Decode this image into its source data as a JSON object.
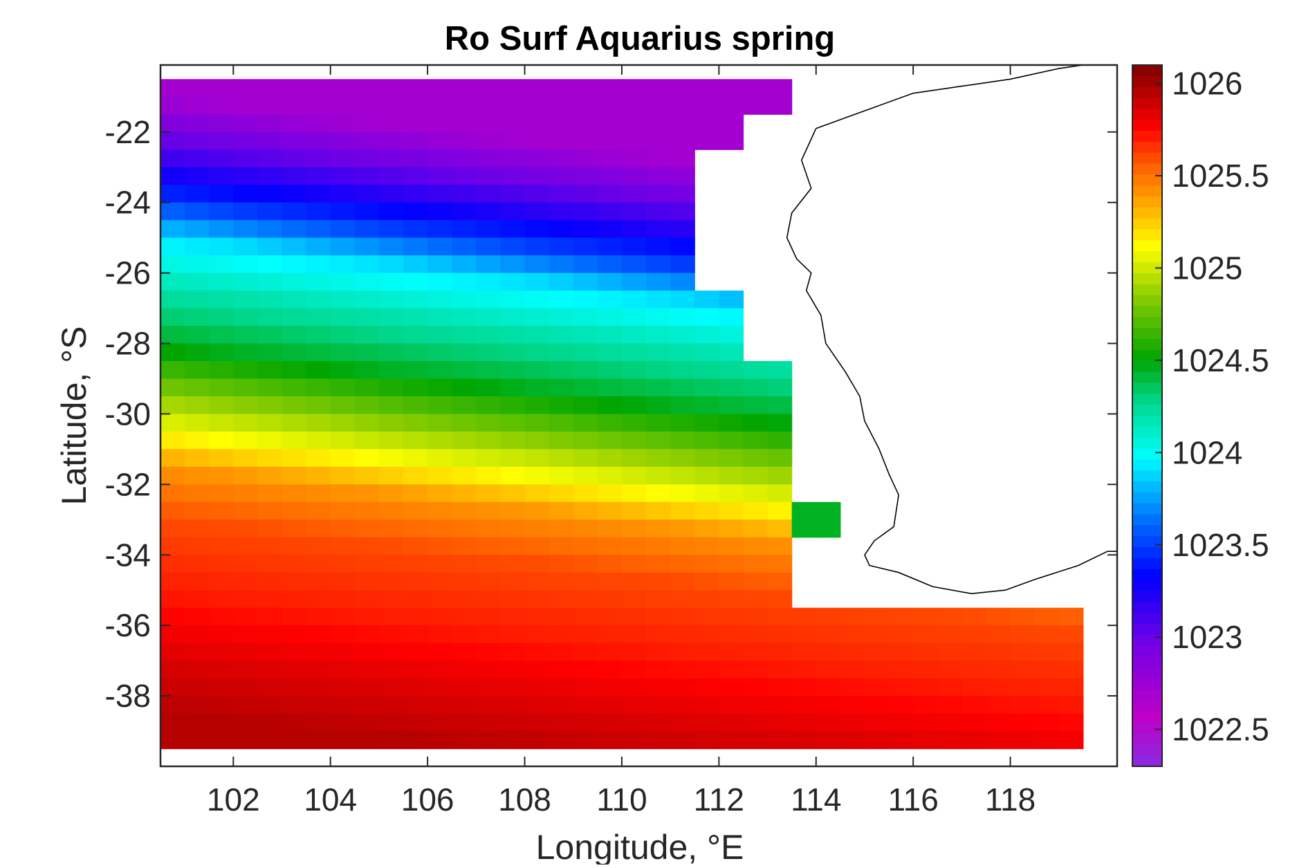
{
  "chart_data": {
    "type": "heatmap",
    "title": "Ro Surf Aquarius spring",
    "xlabel": "Longitude, °E",
    "ylabel": "Latitude, °S",
    "xlim": [
      100.5,
      120.2
    ],
    "ylim": [
      -40.0,
      -20.1
    ],
    "x_ticks": [
      102,
      104,
      106,
      108,
      110,
      112,
      114,
      116,
      118
    ],
    "x_tick_labels": [
      "102",
      "104",
      "106",
      "108",
      "110",
      "112",
      "114",
      "116",
      "118"
    ],
    "y_ticks": [
      -22,
      -24,
      -26,
      -28,
      -30,
      -32,
      -34,
      -36,
      -38
    ],
    "y_tick_labels": [
      "-22",
      "-24",
      "-26",
      "-28",
      "-30",
      "-32",
      "-34",
      "-36",
      "-38"
    ],
    "colorbar": {
      "limits": [
        1022.3,
        1026.1
      ],
      "ticks": [
        1022.5,
        1023,
        1023.5,
        1024,
        1024.5,
        1025,
        1025.5,
        1026
      ],
      "tick_labels": [
        "1022.5",
        "1023",
        "1023.5",
        "1024",
        "1024.5",
        "1025",
        "1025.5",
        "1026"
      ],
      "colormap": "hsv-like: violet - blue - cyan - green - yellow - orange - red - dark red"
    },
    "grid": {
      "lon_range": [
        100.5,
        119.5
      ],
      "lat_range": [
        -39.5,
        -20.5
      ],
      "resolution_deg": 0.5,
      "value_bands": [
        {
          "lat": -21.0,
          "value": 1022.7
        },
        {
          "lat": -23.0,
          "value": 1023.2
        },
        {
          "lat": -24.0,
          "value": 1023.5
        },
        {
          "lat": -25.0,
          "value": 1023.9
        },
        {
          "lat": -26.5,
          "value": 1024.2
        },
        {
          "lat": -28.0,
          "value": 1024.45
        },
        {
          "lat": -29.5,
          "value": 1024.85
        },
        {
          "lat": -30.5,
          "value": 1025.1
        },
        {
          "lat": -31.5,
          "value": 1025.4
        },
        {
          "lat": -33.0,
          "value": 1025.6
        },
        {
          "lat": -35.0,
          "value": 1025.7
        },
        {
          "lat": -37.0,
          "value": 1025.85
        },
        {
          "lat": -38.5,
          "value": 1025.95
        }
      ],
      "eastward_shift_deg_lat_per_deg_lon": 0.3,
      "masked_regions_land": [
        {
          "lon": [
            113.5,
            120.2
          ],
          "lat": [
            -35.5,
            -20.1
          ]
        },
        {
          "lon": [
            112.5,
            113.5
          ],
          "lat": [
            -28.5,
            -21.5
          ]
        },
        {
          "lon": [
            111.5,
            112.5
          ],
          "lat": [
            -26.5,
            -22.5
          ]
        },
        {
          "lon": [
            112.5,
            120.2
          ],
          "lat": [
            -20.5,
            -20.1
          ]
        },
        {
          "lon": [
            113.5,
            114.5
          ],
          "lat": [
            -32.5,
            -20.1
          ]
        },
        {
          "lon": [
            113.5,
            114.5
          ],
          "lat": [
            -35.5,
            -33.5
          ]
        }
      ],
      "note_cells": [
        {
          "lon": [
            113.5,
            114.5
          ],
          "lat": [
            -33.5,
            -32.5
          ],
          "value": 1024.45
        }
      ]
    },
    "coastline": {
      "points": [
        [
          114.0,
          -21.9
        ],
        [
          114.2,
          -21.8
        ],
        [
          114.6,
          -21.6
        ],
        [
          115.2,
          -21.3
        ],
        [
          116.0,
          -20.9
        ],
        [
          117.0,
          -20.7
        ],
        [
          118.0,
          -20.5
        ],
        [
          119.0,
          -20.2
        ],
        [
          119.5,
          -20.1
        ],
        [
          113.9,
          -22.2
        ],
        [
          113.7,
          -22.8
        ],
        [
          113.9,
          -23.6
        ],
        [
          113.5,
          -24.3
        ],
        [
          113.4,
          -25.0
        ],
        [
          113.6,
          -25.6
        ],
        [
          113.9,
          -26.0
        ],
        [
          113.8,
          -26.5
        ],
        [
          114.1,
          -27.2
        ],
        [
          114.2,
          -28.0
        ],
        [
          114.6,
          -28.8
        ],
        [
          114.9,
          -29.5
        ],
        [
          115.0,
          -30.2
        ],
        [
          115.3,
          -31.0
        ],
        [
          115.5,
          -31.7
        ],
        [
          115.7,
          -32.3
        ],
        [
          115.6,
          -33.2
        ],
        [
          115.2,
          -33.6
        ],
        [
          115.0,
          -34.0
        ],
        [
          115.1,
          -34.3
        ],
        [
          115.7,
          -34.5
        ],
        [
          116.4,
          -34.9
        ],
        [
          117.2,
          -35.1
        ],
        [
          117.9,
          -35.0
        ],
        [
          118.5,
          -34.7
        ],
        [
          119.4,
          -34.3
        ],
        [
          120.0,
          -33.9
        ],
        [
          120.2,
          -33.9
        ]
      ]
    }
  }
}
